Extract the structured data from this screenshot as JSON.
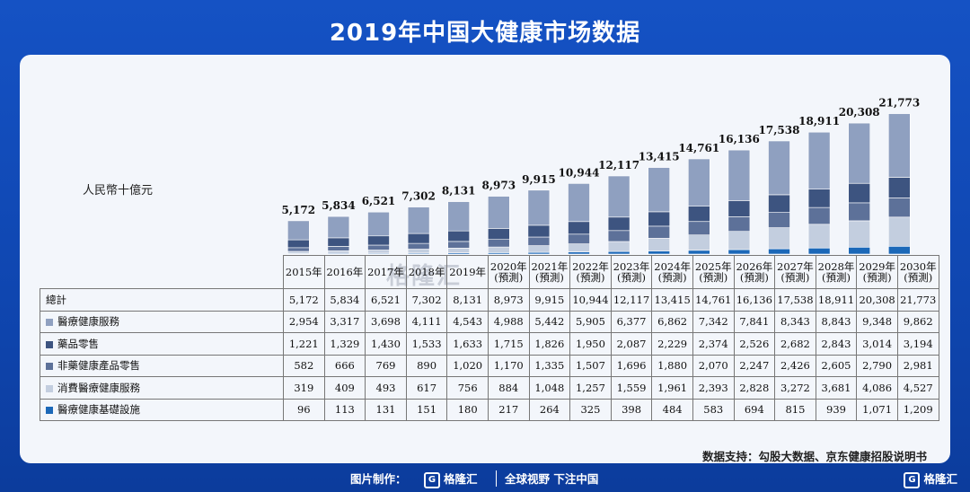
{
  "title": "2019年中国大健康市场数据",
  "unit_label": "人民幣十億元",
  "source_text": "数据支持：勾股大数据、京东健康招股说明书",
  "watermark_text": "格隆汇",
  "footer": {
    "credit_label": "图片制作：",
    "brand_name": "格隆汇",
    "slogan": "全球视野 下注中国",
    "brand_right": "格隆汇"
  },
  "colors": {
    "medical_services": "#8fa0c0",
    "pharma_retail": "#3d5480",
    "non_pharma_retail": "#5d7199",
    "consumer_services": "#c3cedf",
    "infrastructure": "#1b68b8",
    "background": "#1552c4"
  },
  "chart_data": {
    "type": "bar",
    "stacked": true,
    "title": "2019年中国大健康市场数据",
    "ylabel": "人民幣十億元",
    "categories": [
      "2015年",
      "2016年",
      "2017年",
      "2018年",
      "2019年",
      "2020年(預測)",
      "2021年(預測)",
      "2022年(預測)",
      "2023年(預測)",
      "2024年(預測)",
      "2025年(預測)",
      "2026年(預測)",
      "2027年(預測)",
      "2028年(預測)",
      "2029年(預測)",
      "2030年(預測)"
    ],
    "category_lines": [
      [
        "2015年"
      ],
      [
        "2016年"
      ],
      [
        "2017年"
      ],
      [
        "2018年"
      ],
      [
        "2019年"
      ],
      [
        "2020年",
        "(預測)"
      ],
      [
        "2021年",
        "(預測)"
      ],
      [
        "2022年",
        "(預測)"
      ],
      [
        "2023年",
        "(預測)"
      ],
      [
        "2024年",
        "(預測)"
      ],
      [
        "2025年",
        "(預測)"
      ],
      [
        "2026年",
        "(預測)"
      ],
      [
        "2027年",
        "(預測)"
      ],
      [
        "2028年",
        "(預測)"
      ],
      [
        "2029年",
        "(預測)"
      ],
      [
        "2030年",
        "(預測)"
      ]
    ],
    "totals_label": "總計",
    "totals": [
      5172,
      5834,
      6521,
      7302,
      8131,
      8973,
      9915,
      10944,
      12117,
      13415,
      14761,
      16136,
      17538,
      18911,
      20308,
      21773
    ],
    "totals_display": [
      "5,172",
      "5,834",
      "6,521",
      "7,302",
      "8,131",
      "8,973",
      "9,915",
      "10,944",
      "12,117",
      "13,415",
      "14,761",
      "16,136",
      "17,538",
      "18,911",
      "20,308",
      "21,773"
    ],
    "series": [
      {
        "key": "medical_services",
        "name": "醫療健康服務",
        "values": [
          2954,
          3317,
          3698,
          4111,
          4543,
          4988,
          5442,
          5905,
          6377,
          6862,
          7342,
          7841,
          8343,
          8843,
          9348,
          9862
        ],
        "display": [
          "2,954",
          "3,317",
          "3,698",
          "4,111",
          "4,543",
          "4,988",
          "5,442",
          "5,905",
          "6,377",
          "6,862",
          "7,342",
          "7,841",
          "8,343",
          "8,843",
          "9,348",
          "9,862"
        ]
      },
      {
        "key": "pharma_retail",
        "name": "藥品零售",
        "values": [
          1221,
          1329,
          1430,
          1533,
          1633,
          1715,
          1826,
          1950,
          2087,
          2229,
          2374,
          2526,
          2682,
          2843,
          3014,
          3194
        ],
        "display": [
          "1,221",
          "1,329",
          "1,430",
          "1,533",
          "1,633",
          "1,715",
          "1,826",
          "1,950",
          "2,087",
          "2,229",
          "2,374",
          "2,526",
          "2,682",
          "2,843",
          "3,014",
          "3,194"
        ]
      },
      {
        "key": "non_pharma_retail",
        "name": "非藥健康產品零售",
        "values": [
          582,
          666,
          769,
          890,
          1020,
          1170,
          1335,
          1507,
          1696,
          1880,
          2070,
          2247,
          2426,
          2605,
          2790,
          2981
        ],
        "display": [
          "582",
          "666",
          "769",
          "890",
          "1,020",
          "1,170",
          "1,335",
          "1,507",
          "1,696",
          "1,880",
          "2,070",
          "2,247",
          "2,426",
          "2,605",
          "2,790",
          "2,981"
        ]
      },
      {
        "key": "consumer_services",
        "name": "消費醫療健康服務",
        "values": [
          319,
          409,
          493,
          617,
          756,
          884,
          1048,
          1257,
          1559,
          1961,
          2393,
          2828,
          3272,
          3681,
          4086,
          4527
        ],
        "display": [
          "319",
          "409",
          "493",
          "617",
          "756",
          "884",
          "1,048",
          "1,257",
          "1,559",
          "1,961",
          "2,393",
          "2,828",
          "3,272",
          "3,681",
          "4,086",
          "4,527"
        ]
      },
      {
        "key": "infrastructure",
        "name": "醫療健康基礎設施",
        "values": [
          96,
          113,
          131,
          151,
          180,
          217,
          264,
          325,
          398,
          484,
          583,
          694,
          815,
          939,
          1071,
          1209
        ],
        "display": [
          "96",
          "113",
          "131",
          "151",
          "180",
          "217",
          "264",
          "325",
          "398",
          "484",
          "583",
          "694",
          "815",
          "939",
          "1,071",
          "1,209"
        ]
      }
    ],
    "stack_order_bottom_to_top": [
      "infrastructure",
      "consumer_services",
      "non_pharma_retail",
      "pharma_retail",
      "medical_services"
    ],
    "ylim": [
      0,
      22000
    ],
    "grid": false,
    "legend": "table-below"
  }
}
